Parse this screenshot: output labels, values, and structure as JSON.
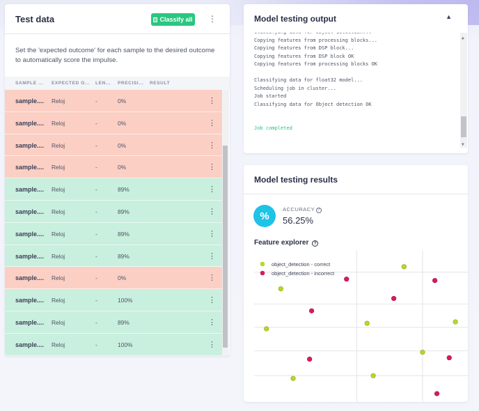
{
  "test_data": {
    "title": "Test data",
    "classify_all_label": "Classify all",
    "description": "Set the 'expected outcome' for each sample to the desired outcome to automatically score the impulse.",
    "columns": [
      "SAMPLE ...",
      "EXPECTED O...",
      "LEN...",
      "PRECISI...",
      "RESULT"
    ],
    "rows": [
      {
        "name": "sample....",
        "expected": "Reloj",
        "length": "-",
        "precision": "0%",
        "status": "incorrect"
      },
      {
        "name": "sample....",
        "expected": "Reloj",
        "length": "-",
        "precision": "0%",
        "status": "incorrect"
      },
      {
        "name": "sample....",
        "expected": "Reloj",
        "length": "-",
        "precision": "0%",
        "status": "incorrect"
      },
      {
        "name": "sample....",
        "expected": "Reloj",
        "length": "-",
        "precision": "0%",
        "status": "incorrect"
      },
      {
        "name": "sample....",
        "expected": "Reloj",
        "length": "-",
        "precision": "89%",
        "status": "correct"
      },
      {
        "name": "sample....",
        "expected": "Reloj",
        "length": "-",
        "precision": "89%",
        "status": "correct"
      },
      {
        "name": "sample....",
        "expected": "Reloj",
        "length": "-",
        "precision": "89%",
        "status": "correct"
      },
      {
        "name": "sample....",
        "expected": "Reloj",
        "length": "-",
        "precision": "89%",
        "status": "correct"
      },
      {
        "name": "sample....",
        "expected": "Reloj",
        "length": "-",
        "precision": "0%",
        "status": "incorrect"
      },
      {
        "name": "sample....",
        "expected": "Reloj",
        "length": "-",
        "precision": "100%",
        "status": "correct"
      },
      {
        "name": "sample....",
        "expected": "Reloj",
        "length": "-",
        "precision": "89%",
        "status": "correct"
      },
      {
        "name": "sample....",
        "expected": "Reloj",
        "length": "-",
        "precision": "100%",
        "status": "correct"
      }
    ]
  },
  "output": {
    "title": "Model testing output",
    "lines": [
      "Classifying data for Object detection...",
      "Copying features from processing blocks...",
      "Copying features from DSP block...",
      "Copying features from DSP block OK",
      "Copying features from processing blocks OK",
      "",
      "Classifying data for float32 model...",
      "Scheduling job in cluster...",
      "Job started",
      "Classifying data for Object detection OK",
      "",
      "",
      "Job completed"
    ]
  },
  "results": {
    "title": "Model testing results",
    "accuracy_label": "ACCURACY",
    "accuracy_value": "56.25%",
    "feature_explorer_title": "Feature explorer",
    "legend": {
      "correct": "object_detection - correct",
      "incorrect": "object_detection - incorrect"
    }
  },
  "colors": {
    "correct_row": "#c9efde",
    "incorrect_row": "#fccfc4",
    "accent_green": "#29c77f",
    "accuracy_icon": "#1fc3e6",
    "point_correct": "#b5d829",
    "point_incorrect": "#d81b60"
  },
  "chart_data": {
    "type": "scatter",
    "title": "Feature explorer",
    "xlabel": "",
    "ylabel": "",
    "grid": true,
    "legend_position": "top-left",
    "series": [
      {
        "name": "object_detection - correct",
        "points": [
          [
            0.13,
            0.78
          ],
          [
            0.06,
            0.49
          ],
          [
            0.19,
            0.13
          ],
          [
            0.73,
            0.94
          ],
          [
            0.55,
            0.53
          ],
          [
            0.98,
            0.54
          ],
          [
            0.82,
            0.32
          ],
          [
            0.58,
            0.15
          ]
        ]
      },
      {
        "name": "object_detection - incorrect",
        "points": [
          [
            0.45,
            0.85
          ],
          [
            0.88,
            0.84
          ],
          [
            0.28,
            0.62
          ],
          [
            0.68,
            0.71
          ],
          [
            0.27,
            0.27
          ],
          [
            0.95,
            0.28
          ],
          [
            0.89,
            0.02
          ]
        ]
      }
    ]
  }
}
